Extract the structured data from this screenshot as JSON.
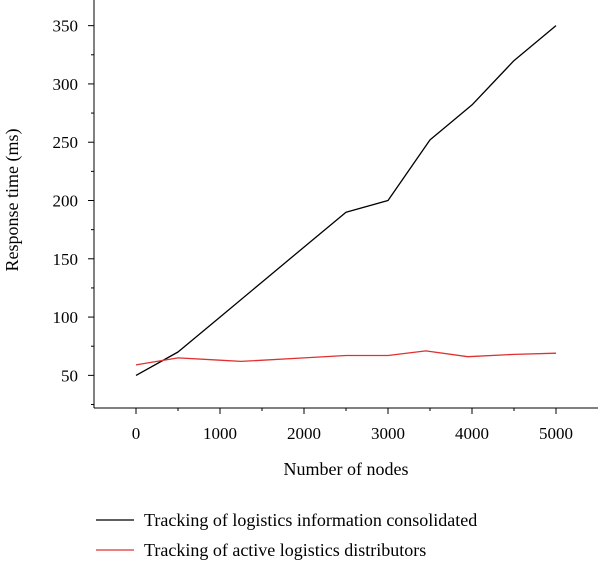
{
  "chart_data": {
    "type": "line",
    "title": "",
    "xlabel": "Number of nodes",
    "ylabel": "Response time (ms)",
    "xlim": [
      -500,
      5500
    ],
    "ylim": [
      22,
      372
    ],
    "x_ticks": [
      0,
      1000,
      2000,
      3000,
      4000,
      5000
    ],
    "y_ticks": [
      50,
      100,
      150,
      200,
      250,
      300,
      350
    ],
    "grid": false,
    "legend_position": "bottom",
    "series": [
      {
        "name": "Tracking of logistics information consolidated",
        "color": "#000000",
        "x": [
          0,
          500,
          1000,
          1500,
          2000,
          2500,
          3000,
          3500,
          4000,
          4500,
          5000
        ],
        "y": [
          50,
          70,
          100,
          130,
          160,
          190,
          200,
          252,
          282,
          320,
          350
        ]
      },
      {
        "name": "Tracking of active logistics distributors",
        "color": "#e03030",
        "x": [
          0,
          500,
          1000,
          1250,
          2000,
          2500,
          3000,
          3450,
          3950,
          4500,
          5000
        ],
        "y": [
          59,
          65,
          63,
          62,
          65,
          67,
          67,
          71,
          66,
          68,
          69
        ]
      }
    ]
  }
}
